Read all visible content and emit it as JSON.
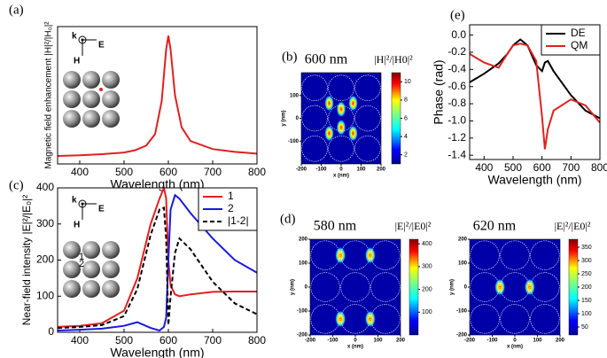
{
  "chart_data": [
    {
      "type": "line",
      "panel": "(a)",
      "xlabel": "Wavelength (nm)",
      "ylabel": "Magnetic field enhancement |H|²/|H₀|²",
      "x": [
        350,
        400,
        450,
        500,
        525,
        550,
        570,
        585,
        595,
        600,
        605,
        615,
        630,
        650,
        700,
        750,
        800
      ],
      "values": [
        0.7,
        0.75,
        0.85,
        1.0,
        1.2,
        1.6,
        2.6,
        5.5,
        10,
        11.2,
        10,
        6,
        3.2,
        2.0,
        1.3,
        1.05,
        0.9
      ],
      "color": "#e02020",
      "xlim": [
        350,
        800
      ],
      "ylim": [
        0,
        12
      ],
      "xticks": [
        400,
        500,
        600,
        700,
        800
      ],
      "inset": [
        "k",
        "E",
        "H"
      ]
    },
    {
      "type": "heatmap",
      "panel": "(b)",
      "title": "600 nm",
      "colorbar_label": "|H|²/|H0|²",
      "xlabel": "x (nm)",
      "ylabel": "y (nm)",
      "xlim": [
        -200,
        200
      ],
      "ylim": [
        -200,
        200
      ],
      "xticks": [
        -200,
        -100,
        0,
        100,
        200
      ],
      "yticks": [
        -100,
        0,
        100
      ],
      "clim": [
        1,
        11
      ],
      "cticks": [
        2,
        4,
        6,
        8,
        10
      ]
    },
    {
      "type": "line",
      "panel": "(e)",
      "xlabel": "Wavelength (nm)",
      "ylabel": "Phase (rad)",
      "xlim": [
        350,
        800
      ],
      "ylim": [
        -1.45,
        0.12
      ],
      "xticks": [
        400,
        500,
        600,
        700,
        800
      ],
      "yticks": [
        {
          "value": 0,
          "label": "0.0"
        },
        -0.2,
        -0.4,
        -0.6,
        -0.8,
        {
          "value": -1,
          "label": "-1.0"
        },
        -1.2,
        -1.4
      ],
      "legend": "upper right",
      "x": [
        350,
        400,
        450,
        480,
        500,
        525,
        550,
        580,
        600,
        610,
        620,
        640,
        700,
        750,
        800
      ],
      "series": [
        {
          "name": "DE",
          "color": "#000000",
          "values": [
            -0.55,
            -0.45,
            -0.33,
            -0.22,
            -0.12,
            -0.05,
            -0.12,
            -0.35,
            -0.42,
            -0.32,
            -0.3,
            -0.42,
            -0.7,
            -0.88,
            -0.97
          ]
        },
        {
          "name": "QM",
          "color": "#e02020",
          "values": [
            -0.22,
            -0.32,
            -0.38,
            -0.22,
            -0.12,
            -0.1,
            -0.12,
            -0.3,
            -0.95,
            -1.33,
            -1.1,
            -0.88,
            -0.75,
            -0.82,
            -1.02
          ]
        }
      ]
    },
    {
      "type": "line",
      "panel": "(c)",
      "xlabel": "Wavelength (nm)",
      "ylabel": "Near-field intensity |E|²/|E₀|²",
      "xlim": [
        350,
        800
      ],
      "ylim": [
        0,
        400
      ],
      "xticks": [
        400,
        500,
        600,
        700,
        800
      ],
      "yticks": [
        0,
        100,
        200,
        300,
        400
      ],
      "legend": "upper right",
      "inset": [
        "k",
        "E",
        "H",
        "1",
        "2"
      ],
      "x": [
        350,
        400,
        450,
        500,
        530,
        560,
        580,
        590,
        595,
        600,
        605,
        615,
        625,
        650,
        700,
        750,
        800
      ],
      "series": [
        {
          "name": "1",
          "color": "#e02020",
          "values": [
            15,
            18,
            25,
            60,
            150,
            300,
            370,
            400,
            370,
            200,
            130,
            105,
            100,
            105,
            112,
            113,
            113
          ]
        },
        {
          "name": "2",
          "color": "#1a1adc",
          "values": [
            5,
            7,
            10,
            18,
            28,
            12,
            5,
            15,
            40,
            200,
            340,
            380,
            370,
            330,
            260,
            200,
            165
          ]
        },
        {
          "name": "|1-2|",
          "color": "#000000",
          "dash": true,
          "values": [
            12,
            15,
            20,
            45,
            120,
            270,
            340,
            345,
            260,
            20,
            100,
            220,
            260,
            230,
            140,
            80,
            50
          ]
        }
      ]
    },
    {
      "type": "heatmap",
      "panel": "(d)",
      "title": "580 nm",
      "colorbar_label": "|E|²/|E0|²",
      "xlabel": "x (nm)",
      "ylabel": "y (nm)",
      "xlim": [
        -200,
        200
      ],
      "ylim": [
        -200,
        200
      ],
      "xticks": [
        -200,
        -100,
        0,
        100,
        200
      ],
      "yticks": [
        -200,
        -100,
        0,
        100,
        200
      ],
      "clim": [
        0,
        420
      ],
      "cticks": [
        100,
        200,
        300,
        400
      ]
    },
    {
      "type": "heatmap",
      "title": "620 nm",
      "colorbar_label": "|E|²/|E0|²",
      "xlabel": "x (nm)",
      "ylabel": "y (nm)",
      "xlim": [
        -200,
        200
      ],
      "ylim": [
        -200,
        200
      ],
      "xticks": [
        -200,
        -100,
        0,
        100,
        200
      ],
      "yticks": [
        -200,
        -100,
        0,
        100,
        200
      ],
      "clim": [
        20,
        380
      ],
      "cticks": [
        50,
        100,
        150,
        200,
        250,
        300,
        350
      ]
    }
  ]
}
